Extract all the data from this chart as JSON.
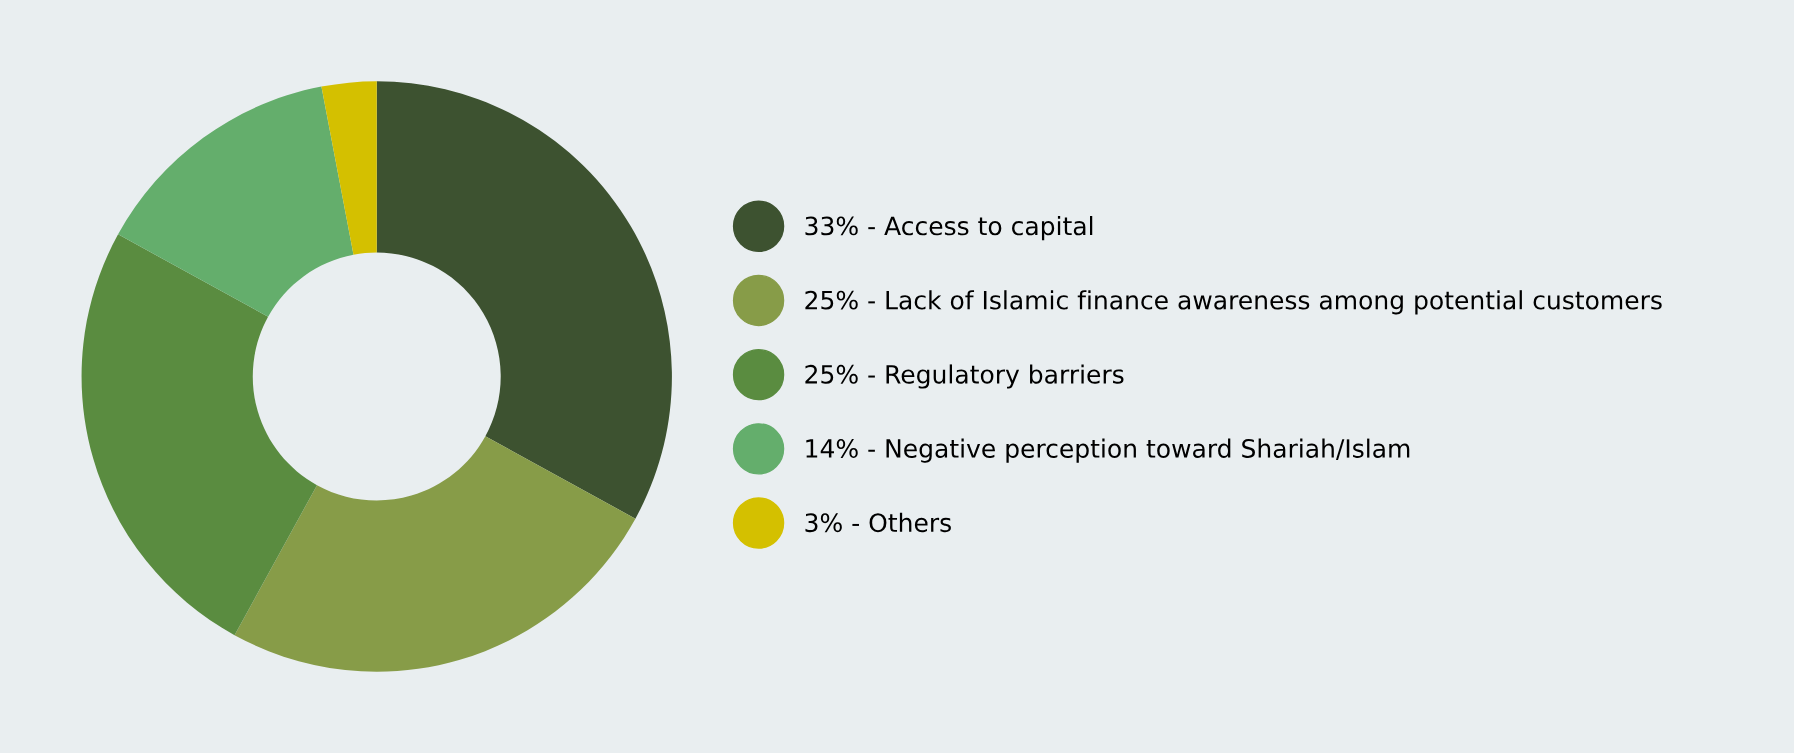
{
  "chart_data": {
    "type": "donut",
    "categories": [
      "Access to capital",
      "Lack of Islamic finance awareness among potential customers",
      "Regulatory barriers",
      "Negative perception toward Shariah/Islam",
      "Others"
    ],
    "values": [
      33,
      25,
      25,
      14,
      3
    ],
    "colors": [
      "#3d5230",
      "#879c48",
      "#5a8c40",
      "#64ae6c",
      "#d4c000"
    ],
    "value_labels": [
      "33%",
      "25%",
      "25%",
      "14%",
      "3%"
    ],
    "legend": "right"
  }
}
